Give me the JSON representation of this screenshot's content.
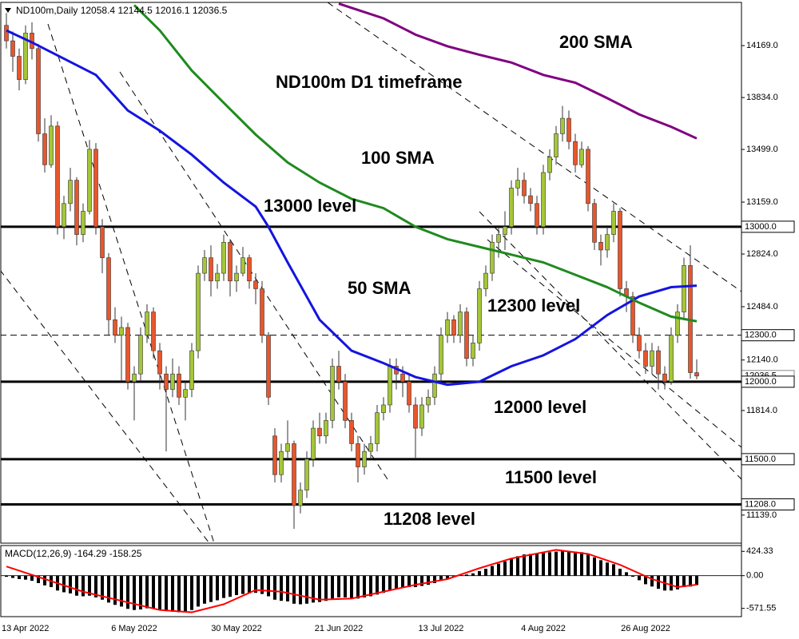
{
  "chart_data": [
    {
      "type": "candlestick",
      "symbol": "ND100m,Daily",
      "categories": [
        "13 Apr 2022",
        null,
        null,
        null,
        null,
        null,
        null,
        null,
        null,
        null,
        null,
        null,
        null,
        null,
        null,
        null,
        null,
        null,
        null,
        null,
        "6 May 2022",
        null,
        null,
        null,
        null,
        null,
        null,
        null,
        null,
        null,
        null,
        null,
        null,
        null,
        null,
        null,
        "30 May 2022",
        null,
        null,
        null,
        null,
        null,
        null,
        null,
        null,
        null,
        null,
        null,
        null,
        null,
        null,
        null,
        "21 Jun 2022",
        null,
        null,
        null,
        null,
        null,
        null,
        null,
        null,
        null,
        null,
        null,
        null,
        null,
        null,
        null,
        "13 Jul 2022",
        null,
        null,
        null,
        null,
        null,
        null,
        null,
        null,
        null,
        null,
        null,
        null,
        null,
        null,
        null,
        "4 Aug 2022",
        null,
        null,
        null,
        null,
        null,
        null,
        null,
        null,
        null,
        null,
        null,
        null,
        null,
        null,
        null,
        "26 Aug 2022",
        null,
        null,
        null,
        null,
        null,
        null,
        null,
        null
      ],
      "ohlc": [
        [
          14300,
          14380,
          14150,
          14200
        ],
        [
          14200,
          14260,
          14000,
          14100
        ],
        [
          14100,
          14150,
          13880,
          13950
        ],
        [
          13950,
          14300,
          13920,
          14250
        ],
        [
          14250,
          14320,
          14080,
          14150
        ],
        [
          14150,
          14180,
          13550,
          13600
        ],
        [
          13600,
          13700,
          13350,
          13400
        ],
        [
          13400,
          13720,
          13380,
          13650
        ],
        [
          13650,
          13680,
          12950,
          13000
        ],
        [
          13000,
          13200,
          12920,
          13150
        ],
        [
          13150,
          13380,
          13100,
          13300
        ],
        [
          13300,
          13320,
          12880,
          12950
        ],
        [
          12950,
          13150,
          12900,
          13100
        ],
        [
          13100,
          13560,
          13080,
          13500
        ],
        [
          13500,
          13540,
          12950,
          13000
        ],
        [
          13000,
          13050,
          12700,
          12800
        ],
        [
          12800,
          12830,
          12300,
          12400
        ],
        [
          12400,
          12480,
          12250,
          12300
        ],
        [
          12300,
          12420,
          12000,
          12350
        ],
        [
          12350,
          12380,
          11950,
          12000
        ],
        [
          12000,
          12100,
          11750,
          12050
        ],
        [
          12050,
          12350,
          12000,
          12300
        ],
        [
          12300,
          12500,
          12250,
          12450
        ],
        [
          12450,
          12480,
          12150,
          12200
        ],
        [
          12200,
          12250,
          11950,
          12050
        ],
        [
          12050,
          12100,
          11550,
          11950
        ],
        [
          11950,
          12150,
          11900,
          12050
        ],
        [
          12050,
          12100,
          11850,
          11900
        ],
        [
          11900,
          12000,
          11750,
          11950
        ],
        [
          11950,
          12250,
          11900,
          12200
        ],
        [
          12200,
          12750,
          12150,
          12700
        ],
        [
          12700,
          12850,
          12650,
          12800
        ],
        [
          12800,
          12880,
          12550,
          12650
        ],
        [
          12650,
          12760,
          12600,
          12700
        ],
        [
          12700,
          12950,
          12650,
          12900
        ],
        [
          12900,
          12920,
          12550,
          12650
        ],
        [
          12650,
          12750,
          12580,
          12700
        ],
        [
          12700,
          12870,
          12680,
          12800
        ],
        [
          12800,
          12820,
          12600,
          12650
        ],
        [
          12650,
          12700,
          12500,
          12600
        ],
        [
          12600,
          12650,
          12250,
          12300
        ],
        [
          12300,
          12320,
          11850,
          11900
        ],
        [
          11650,
          11700,
          11350,
          11400
        ],
        [
          11400,
          11600,
          11350,
          11550
        ],
        [
          11550,
          11750,
          11500,
          11600
        ],
        [
          11600,
          11620,
          11050,
          11200
        ],
        [
          11200,
          11350,
          11150,
          11300
        ],
        [
          11300,
          11550,
          11250,
          11500
        ],
        [
          11500,
          11750,
          11450,
          11700
        ],
        [
          11700,
          11800,
          11600,
          11650
        ],
        [
          11650,
          11800,
          11600,
          11750
        ],
        [
          11750,
          12150,
          11700,
          12100
        ],
        [
          12100,
          12200,
          11950,
          12000
        ],
        [
          12000,
          12050,
          11700,
          11750
        ],
        [
          11750,
          11800,
          11550,
          11600
        ],
        [
          11600,
          11650,
          11350,
          11450
        ],
        [
          11450,
          11600,
          11400,
          11550
        ],
        [
          11550,
          11650,
          11500,
          11600
        ],
        [
          11600,
          11850,
          11550,
          11800
        ],
        [
          11800,
          11900,
          11750,
          11850
        ],
        [
          11850,
          12150,
          11800,
          12100
        ],
        [
          12100,
          12150,
          11950,
          12050
        ],
        [
          12050,
          12100,
          11900,
          12000
        ],
        [
          12000,
          12050,
          11800,
          11850
        ],
        [
          11850,
          11900,
          11500,
          11700
        ],
        [
          11700,
          11900,
          11650,
          11850
        ],
        [
          11850,
          11950,
          11800,
          11900
        ],
        [
          11900,
          12100,
          11850,
          12050
        ],
        [
          12050,
          12350,
          12000,
          12300
        ],
        [
          12300,
          12450,
          12250,
          12400
        ],
        [
          12400,
          12430,
          12250,
          12300
        ],
        [
          12300,
          12500,
          12250,
          12450
        ],
        [
          12450,
          12480,
          12100,
          12150
        ],
        [
          12150,
          12300,
          12100,
          12250
        ],
        [
          12250,
          12650,
          12200,
          12600
        ],
        [
          12600,
          12750,
          12550,
          12700
        ],
        [
          12700,
          12950,
          12650,
          12900
        ],
        [
          12900,
          13000,
          12800,
          12950
        ],
        [
          12950,
          13100,
          12850,
          13000
        ],
        [
          13000,
          13300,
          12950,
          13250
        ],
        [
          13250,
          13380,
          13200,
          13300
        ],
        [
          13300,
          13350,
          13150,
          13200
        ],
        [
          13200,
          13250,
          13100,
          13150
        ],
        [
          13150,
          13200,
          12950,
          13000
        ],
        [
          13000,
          13400,
          12950,
          13350
        ],
        [
          13350,
          13500,
          13300,
          13450
        ],
        [
          13450,
          13650,
          13400,
          13600
        ],
        [
          13600,
          13780,
          13550,
          13700
        ],
        [
          13700,
          13750,
          13500,
          13550
        ],
        [
          13550,
          13600,
          13350,
          13400
        ],
        [
          13400,
          13550,
          13380,
          13500
        ],
        [
          13500,
          13520,
          13100,
          13150
        ],
        [
          13150,
          13180,
          12850,
          12900
        ],
        [
          12900,
          12950,
          12750,
          12850
        ],
        [
          12850,
          13000,
          12800,
          12950
        ],
        [
          12950,
          13150,
          12900,
          13100
        ],
        [
          13100,
          13120,
          12550,
          12600
        ],
        [
          12600,
          12650,
          12450,
          12550
        ],
        [
          12550,
          12580,
          12250,
          12300
        ],
        [
          12300,
          12350,
          12150,
          12200
        ],
        [
          12200,
          12250,
          12050,
          12100
        ],
        [
          12100,
          12250,
          12050,
          12200
        ],
        [
          12200,
          12230,
          11950,
          12050
        ],
        [
          12050,
          12100,
          11950,
          12000
        ],
        [
          12000,
          12350,
          11980,
          12300
        ],
        [
          12300,
          12500,
          12250,
          12450
        ],
        [
          12450,
          12800,
          12400,
          12750
        ],
        [
          12750,
          12880,
          12020,
          12058.4
        ],
        [
          12058.4,
          12144.5,
          12016.1,
          12036.5
        ]
      ],
      "bull_color": "#a4c639",
      "bear_color": "#e8562c",
      "wick_color": "#333333",
      "ylim": [
        10958,
        14448
      ],
      "yticks": [
        {
          "value": 14169,
          "label": "14169.0"
        },
        {
          "value": 13834,
          "label": "13834.0"
        },
        {
          "value": 13499,
          "label": "13499.0"
        },
        {
          "value": 13159,
          "label": "13159.0"
        },
        {
          "value": 12824,
          "label": "12824.0"
        },
        {
          "value": 12484,
          "label": "12484.0"
        },
        {
          "value": 12140,
          "label": "12140.0"
        },
        {
          "value": 11814,
          "label": "11814.0"
        },
        {
          "value": 11139,
          "label": "11139.0"
        }
      ],
      "levels": [
        {
          "value": 13000,
          "label": "13000.0",
          "style": "solid"
        },
        {
          "value": 12300,
          "label": "12300.0",
          "style": "dashed"
        },
        {
          "value": 12000,
          "label": "12000.0",
          "style": "solid"
        },
        {
          "value": 11500,
          "label": "11500.0",
          "style": "solid"
        },
        {
          "value": 11208,
          "label": "11208.0",
          "style": "solid"
        }
      ],
      "series": [
        {
          "name": "50 SMA",
          "color": "#1414e0",
          "x": [
            0,
            4,
            9,
            14,
            19,
            24,
            29,
            34,
            39,
            41,
            44,
            49,
            54,
            59,
            64,
            69,
            74,
            79,
            84,
            89,
            94,
            99,
            104,
            108
          ],
          "values": [
            14267,
            14190,
            14085,
            13980,
            13750,
            13620,
            13465,
            13285,
            13130,
            13000,
            12770,
            12400,
            12200,
            12120,
            12030,
            11980,
            12000,
            12100,
            12170,
            12275,
            12430,
            12550,
            12610,
            12620
          ]
        },
        {
          "name": "100 SMA",
          "color": "#1f8a1f",
          "x": [
            20,
            24,
            29,
            34,
            39,
            44,
            49,
            54,
            59,
            64,
            69,
            74,
            79,
            84,
            89,
            94,
            99,
            104,
            108
          ],
          "values": [
            14430,
            14267,
            14008,
            13800,
            13595,
            13415,
            13285,
            13180,
            13120,
            13000,
            12920,
            12870,
            12820,
            12770,
            12690,
            12610,
            12510,
            12420,
            12390
          ]
        },
        {
          "name": "200 SMA",
          "color": "#800080",
          "x": [
            52,
            59,
            64,
            69,
            74,
            79,
            84,
            89,
            94,
            99,
            104,
            108
          ],
          "values": [
            14440,
            14345,
            14240,
            14165,
            14110,
            14060,
            13980,
            13930,
            13830,
            13725,
            13645,
            13570
          ]
        }
      ],
      "annotations": [
        {
          "text": "ND100m D1 timeframe",
          "color": "#000000"
        },
        {
          "text": "13000 level",
          "color": "#000000"
        },
        {
          "text": "12300 level",
          "color": "#000000"
        },
        {
          "text": "12000 level",
          "color": "#000000"
        },
        {
          "text": "11500 level",
          "color": "#000000"
        },
        {
          "text": "11208 level",
          "color": "#000000"
        }
      ]
    },
    {
      "type": "macd",
      "title": "MACD(12,26,9)",
      "histogram": [
        -20,
        -40,
        -60,
        -70,
        -90,
        -130,
        -170,
        -200,
        -260,
        -290,
        -310,
        -350,
        -360,
        -350,
        -380,
        -420,
        -470,
        -510,
        -540,
        -580,
        -600,
        -590,
        -570,
        -580,
        -600,
        -620,
        -630,
        -640,
        -630,
        -600,
        -540,
        -490,
        -460,
        -430,
        -390,
        -370,
        -340,
        -320,
        -310,
        -300,
        -320,
        -360,
        -420,
        -440,
        -450,
        -490,
        -500,
        -490,
        -470,
        -460,
        -440,
        -400,
        -380,
        -380,
        -390,
        -400,
        -380,
        -360,
        -330,
        -300,
        -260,
        -230,
        -210,
        -200,
        -200,
        -180,
        -160,
        -130,
        -90,
        -50,
        -20,
        10,
        20,
        40,
        80,
        120,
        170,
        210,
        250,
        300,
        340,
        370,
        380,
        380,
        400,
        410,
        420,
        430,
        430,
        420,
        410,
        380,
        320,
        270,
        230,
        200,
        120,
        60,
        -20,
        -80,
        -150,
        -190,
        -230,
        -260,
        -260,
        -240,
        -200,
        -190,
        -164.29
      ],
      "histogram_color": "#000000",
      "signal": {
        "color": "#ff0000",
        "x": [
          0,
          12,
          24,
          29,
          34,
          39,
          43,
          49,
          54,
          59,
          64,
          69,
          74,
          79,
          86,
          91,
          96,
          101,
          105,
          108
        ],
        "values": [
          160,
          -280,
          -600,
          -640,
          -500,
          -250,
          -280,
          -420,
          -400,
          -280,
          -160,
          -60,
          130,
          300,
          450,
          380,
          190,
          -60,
          -200,
          -158.25
        ]
      },
      "ylim": [
        -716,
        526
      ],
      "yticks": [
        424.33,
        {
          "value": 0,
          "label": "0.00"
        },
        -571.55
      ]
    }
  ]
}
